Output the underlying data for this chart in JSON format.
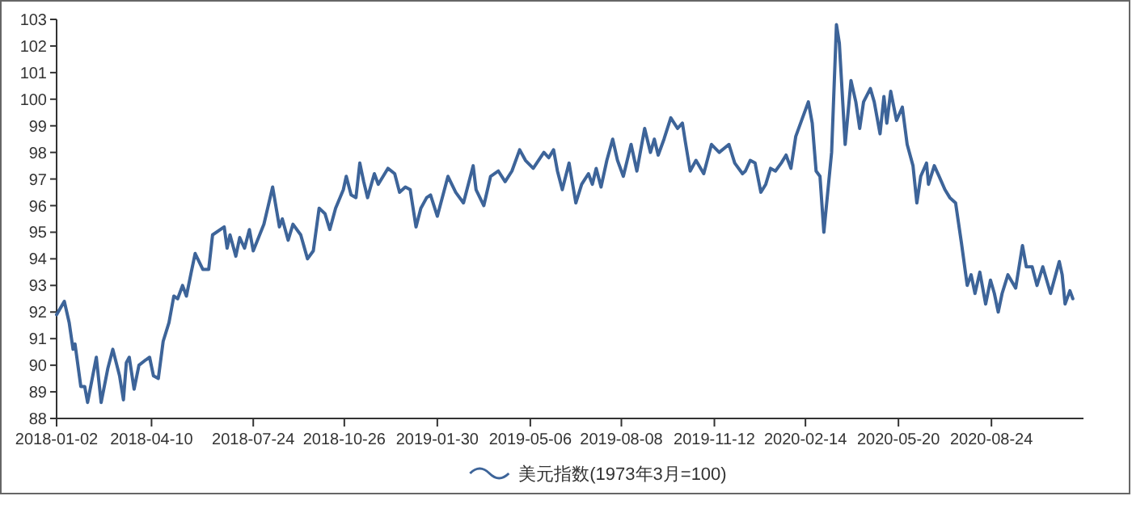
{
  "chart_data": {
    "type": "line",
    "legend": "bottom",
    "grid": false,
    "marker": "none",
    "line_style": "solid",
    "xlim": [
      "2018-01-02",
      "2020-11-27"
    ],
    "xticks": [
      "2018-01-02",
      "2018-04-10",
      "2018-07-24",
      "2018-10-26",
      "2019-01-30",
      "2019-05-06",
      "2019-08-08",
      "2019-11-12",
      "2020-02-14",
      "2020-05-20",
      "2020-08-24"
    ],
    "ylim": [
      88,
      103
    ],
    "yticks": [
      88,
      89,
      90,
      91,
      92,
      93,
      94,
      95,
      96,
      97,
      98,
      99,
      100,
      101,
      102,
      103
    ],
    "series": [
      {
        "name": "美元指数(1973年3月=100)",
        "color": "#3d6499",
        "x": [
          "2018-01-02",
          "2018-01-10",
          "2018-01-15",
          "2018-01-19",
          "2018-01-21",
          "2018-01-27",
          "2018-01-31",
          "2018-02-03",
          "2018-02-12",
          "2018-02-17",
          "2018-02-24",
          "2018-03-01",
          "2018-03-08",
          "2018-03-12",
          "2018-03-15",
          "2018-03-18",
          "2018-03-23",
          "2018-03-28",
          "2018-04-04",
          "2018-04-08",
          "2018-04-12",
          "2018-04-17",
          "2018-04-22",
          "2018-04-28",
          "2018-05-03",
          "2018-05-07",
          "2018-05-12",
          "2018-05-16",
          "2018-05-21",
          "2018-05-25",
          "2018-06-02",
          "2018-06-08",
          "2018-06-12",
          "2018-06-24",
          "2018-06-27",
          "2018-06-30",
          "2018-07-06",
          "2018-07-10",
          "2018-07-15",
          "2018-07-20",
          "2018-07-24",
          "2018-08-04",
          "2018-08-13",
          "2018-08-20",
          "2018-08-23",
          "2018-08-29",
          "2018-09-03",
          "2018-09-11",
          "2018-09-18",
          "2018-09-24",
          "2018-09-30",
          "2018-10-06",
          "2018-10-11",
          "2018-10-17",
          "2018-10-25",
          "2018-10-28",
          "2018-11-02",
          "2018-11-07",
          "2018-11-11",
          "2018-11-15",
          "2018-11-19",
          "2018-11-26",
          "2018-11-30",
          "2018-12-10",
          "2018-12-17",
          "2018-12-22",
          "2018-12-28",
          "2019-01-02",
          "2019-01-08",
          "2019-01-13",
          "2019-01-19",
          "2019-01-23",
          "2019-01-30",
          "2019-02-10",
          "2019-02-18",
          "2019-02-26",
          "2019-03-08",
          "2019-03-11",
          "2019-03-19",
          "2019-03-26",
          "2019-04-03",
          "2019-04-10",
          "2019-04-17",
          "2019-04-25",
          "2019-05-01",
          "2019-05-09",
          "2019-05-20",
          "2019-05-25",
          "2019-05-30",
          "2019-06-03",
          "2019-06-08",
          "2019-06-15",
          "2019-06-22",
          "2019-06-28",
          "2019-07-05",
          "2019-07-09",
          "2019-07-13",
          "2019-07-18",
          "2019-07-24",
          "2019-07-30",
          "2019-08-04",
          "2019-08-10",
          "2019-08-18",
          "2019-08-24",
          "2019-09-01",
          "2019-09-07",
          "2019-09-11",
          "2019-09-15",
          "2019-09-21",
          "2019-09-28",
          "2019-10-05",
          "2019-10-10",
          "2019-10-13",
          "2019-10-18",
          "2019-10-24",
          "2019-11-01",
          "2019-11-09",
          "2019-11-17",
          "2019-11-27",
          "2019-12-03",
          "2019-12-11",
          "2019-12-14",
          "2019-12-19",
          "2019-12-24",
          "2019-12-30",
          "2020-01-04",
          "2020-01-09",
          "2020-01-14",
          "2020-01-20",
          "2020-01-25",
          "2020-01-30",
          "2020-02-04",
          "2020-02-10",
          "2020-02-17",
          "2020-02-21",
          "2020-02-25",
          "2020-02-29",
          "2020-03-04",
          "2020-03-12",
          "2020-03-17",
          "2020-03-20",
          "2020-03-26",
          "2020-04-01",
          "2020-04-06",
          "2020-04-10",
          "2020-04-14",
          "2020-04-21",
          "2020-04-25",
          "2020-05-01",
          "2020-05-05",
          "2020-05-08",
          "2020-05-12",
          "2020-05-18",
          "2020-05-24",
          "2020-05-29",
          "2020-06-04",
          "2020-06-08",
          "2020-06-12",
          "2020-06-18",
          "2020-06-20",
          "2020-06-26",
          "2020-07-01",
          "2020-07-07",
          "2020-07-12",
          "2020-07-18",
          "2020-07-24",
          "2020-07-30",
          "2020-08-03",
          "2020-08-07",
          "2020-08-12",
          "2020-08-18",
          "2020-08-23",
          "2020-08-27",
          "2020-08-31",
          "2020-09-04",
          "2020-09-10",
          "2020-09-18",
          "2020-09-25",
          "2020-09-29",
          "2020-10-05",
          "2020-10-10",
          "2020-10-16",
          "2020-10-24",
          "2020-11-02",
          "2020-11-05",
          "2020-11-08",
          "2020-11-13",
          "2020-11-16"
        ],
        "values": [
          91.9,
          92.4,
          91.6,
          90.6,
          90.8,
          89.2,
          89.2,
          88.6,
          90.3,
          88.6,
          89.9,
          90.6,
          89.6,
          88.7,
          90.1,
          90.3,
          89.1,
          90.0,
          90.2,
          90.3,
          89.6,
          89.5,
          90.9,
          91.6,
          92.6,
          92.5,
          93.0,
          92.6,
          93.5,
          94.2,
          93.6,
          93.6,
          94.9,
          95.2,
          94.4,
          94.9,
          94.1,
          94.8,
          94.4,
          95.1,
          94.3,
          95.3,
          96.7,
          95.2,
          95.5,
          94.7,
          95.3,
          94.9,
          94.0,
          94.3,
          95.9,
          95.7,
          95.1,
          95.9,
          96.6,
          97.1,
          96.4,
          96.3,
          97.6,
          96.9,
          96.3,
          97.2,
          96.8,
          97.4,
          97.2,
          96.5,
          96.7,
          96.6,
          95.2,
          95.9,
          96.3,
          96.4,
          95.6,
          97.1,
          96.5,
          96.1,
          97.5,
          96.6,
          96.0,
          97.1,
          97.3,
          96.9,
          97.3,
          98.1,
          97.7,
          97.4,
          98.0,
          97.8,
          98.1,
          97.3,
          96.6,
          97.6,
          96.1,
          96.8,
          97.2,
          96.8,
          97.4,
          96.7,
          97.7,
          98.5,
          97.7,
          97.1,
          98.3,
          97.3,
          98.9,
          98.0,
          98.5,
          97.9,
          98.5,
          99.3,
          98.9,
          99.1,
          98.4,
          97.3,
          97.7,
          97.2,
          98.3,
          98.0,
          98.3,
          97.6,
          97.2,
          97.3,
          97.7,
          97.6,
          96.5,
          96.8,
          97.4,
          97.3,
          97.6,
          97.9,
          97.4,
          98.6,
          99.2,
          99.9,
          99.1,
          97.3,
          97.1,
          95.0,
          98.0,
          102.8,
          102.1,
          98.3,
          100.7,
          99.9,
          98.9,
          99.9,
          100.4,
          99.9,
          98.7,
          100.1,
          99.1,
          100.3,
          99.2,
          99.7,
          98.3,
          97.5,
          96.1,
          97.1,
          97.6,
          96.8,
          97.5,
          97.1,
          96.6,
          96.3,
          96.1,
          94.6,
          93.0,
          93.4,
          92.7,
          93.5,
          92.3,
          93.2,
          92.7,
          92.0,
          92.7,
          93.4,
          92.9,
          94.5,
          93.7,
          93.7,
          93.0,
          93.7,
          92.7,
          93.9,
          93.4,
          92.3,
          92.8,
          92.5
        ]
      }
    ]
  }
}
